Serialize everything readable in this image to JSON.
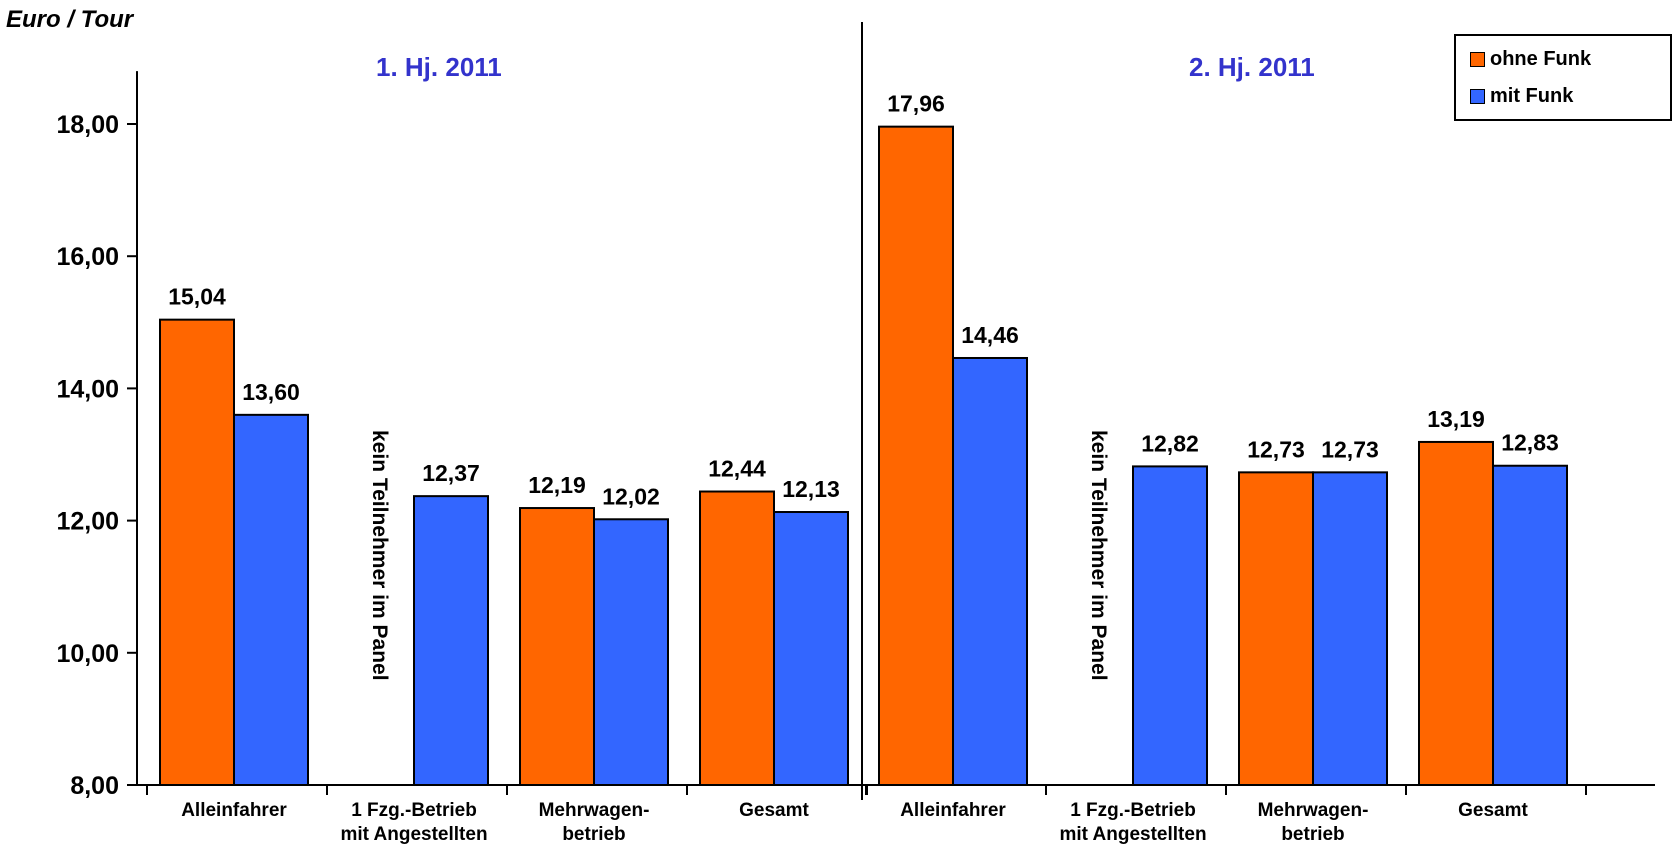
{
  "y_axis_title": "Euro / Tour",
  "half_titles": [
    "1. Hj. 2011",
    "2. Hj. 2011"
  ],
  "legend": [
    {
      "label": "ohne Funk",
      "color": "#ff6600"
    },
    {
      "label": "mit Funk",
      "color": "#3366ff"
    }
  ],
  "chart_data": {
    "type": "bar",
    "ylabel": "Euro / Tour",
    "ylim": [
      8,
      18.8
    ],
    "yticks": [
      "8,00",
      "10,00",
      "12,00",
      "14,00",
      "16,00",
      "18,00"
    ],
    "ytick_values": [
      8,
      10,
      12,
      14,
      16,
      18
    ],
    "grid": false,
    "legend_position": "top-right",
    "groups": [
      {
        "title": "1. Hj. 2011",
        "categories": [
          [
            "Alleinfahrer"
          ],
          [
            "1 Fzg.-Betrieb",
            "mit Angestellten"
          ],
          [
            "Mehrwagen-",
            "betrieb"
          ],
          [
            "Gesamt"
          ]
        ],
        "series": [
          {
            "name": "ohne Funk",
            "color": "#ff6600",
            "values": [
              15.04,
              null,
              12.19,
              12.44
            ],
            "labels": [
              "15,04",
              "",
              "12,19",
              "12,44"
            ]
          },
          {
            "name": "mit Funk",
            "color": "#3366ff",
            "values": [
              13.6,
              12.37,
              12.02,
              12.13
            ],
            "labels": [
              "13,60",
              "12,37",
              "12,02",
              "12,13"
            ]
          }
        ],
        "annotation": {
          "category_index": 1,
          "text": "kein Teilnehmer im Panel"
        }
      },
      {
        "title": "2. Hj. 2011",
        "categories": [
          [
            "Alleinfahrer"
          ],
          [
            "1 Fzg.-Betrieb",
            "mit Angestellten"
          ],
          [
            "Mehrwagen-",
            "betrieb"
          ],
          [
            "Gesamt"
          ]
        ],
        "series": [
          {
            "name": "ohne Funk",
            "color": "#ff6600",
            "values": [
              17.96,
              null,
              12.73,
              13.19
            ],
            "labels": [
              "17,96",
              "",
              "12,73",
              "13,19"
            ]
          },
          {
            "name": "mit Funk",
            "color": "#3366ff",
            "values": [
              14.46,
              12.82,
              12.73,
              12.83
            ],
            "labels": [
              "14,46",
              "12,82",
              "12,73",
              "12,83"
            ]
          }
        ],
        "annotation": {
          "category_index": 1,
          "text": "kein Teilnehmer im Panel"
        }
      }
    ]
  }
}
